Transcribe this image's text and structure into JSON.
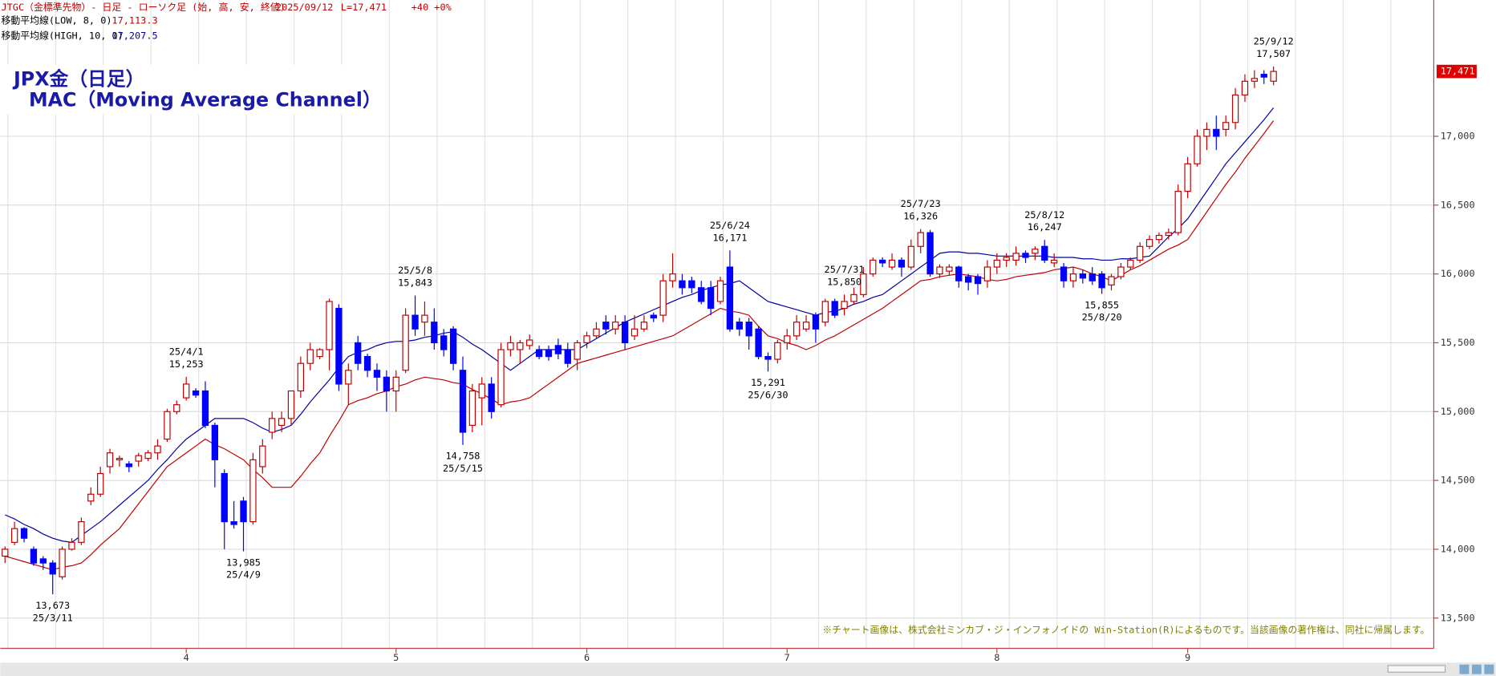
{
  "header": {
    "title": "JTGC（金標準先物）- 日足 - ローソク足 (始, 高, 安, 終値)",
    "date": "2025/09/12",
    "last": "L=17,471",
    "change": "+40",
    "change_pct": "+0%"
  },
  "overlay_title": [
    "JPX金（日足）",
    "MAC（Moving Average Channel）"
  ],
  "footnote": "※チャート画像は、株式会社ミンカブ・ジ・インフォノイドの Win-Station(R)によるものです。当該画像の著作権は、同社に帰属します。",
  "chart_data": {
    "type": "candlestick",
    "up_color": "#c00000",
    "down_color": "#0000ff",
    "grid": true,
    "ylim": [
      13280,
      17990
    ],
    "yticks": [
      {
        "value": 13500,
        "label": "13,500"
      },
      {
        "value": 14000,
        "label": "14,000"
      },
      {
        "value": 14500,
        "label": "14,500"
      },
      {
        "value": 15000,
        "label": "15,000"
      },
      {
        "value": 15500,
        "label": "15,500"
      },
      {
        "value": 16000,
        "label": "16,000"
      },
      {
        "value": 16500,
        "label": "16,500"
      },
      {
        "value": 17000,
        "label": "17,000"
      }
    ],
    "last_price": {
      "value": 17471,
      "label": "17,471"
    },
    "categories": [
      null,
      null,
      null,
      null,
      null,
      null,
      null,
      null,
      null,
      null,
      null,
      null,
      null,
      null,
      null,
      null,
      null,
      null,
      null,
      "4",
      null,
      null,
      null,
      null,
      null,
      null,
      null,
      null,
      null,
      null,
      null,
      null,
      null,
      null,
      null,
      null,
      null,
      null,
      null,
      null,
      null,
      "5",
      null,
      null,
      null,
      null,
      null,
      null,
      null,
      null,
      null,
      null,
      null,
      null,
      null,
      null,
      null,
      null,
      null,
      null,
      null,
      "6",
      null,
      null,
      null,
      null,
      null,
      null,
      null,
      null,
      null,
      null,
      null,
      null,
      null,
      null,
      null,
      null,
      null,
      null,
      null,
      null,
      "7",
      null,
      null,
      null,
      null,
      null,
      null,
      null,
      null,
      null,
      null,
      null,
      null,
      null,
      null,
      null,
      null,
      null,
      null,
      null,
      null,
      null,
      "8",
      null,
      null,
      null,
      null,
      null,
      null,
      null,
      null,
      null,
      null,
      null,
      null,
      null,
      null,
      null,
      null,
      null,
      null,
      null,
      "9",
      null,
      null,
      null,
      null,
      null,
      null,
      null,
      null,
      null
    ],
    "open": [
      13950,
      14050,
      14150,
      14000,
      13930,
      13900,
      13800,
      14000,
      14050,
      14350,
      14400,
      14600,
      14650,
      14620,
      14640,
      14660,
      14700,
      14800,
      15000,
      15100,
      15150,
      15150,
      14900,
      14550,
      14200,
      14350,
      14200,
      14600,
      14850,
      14900,
      14950,
      15150,
      15350,
      15400,
      15450,
      15750,
      15200,
      15500,
      15400,
      15300,
      15250,
      15150,
      15300,
      15700,
      15650,
      15650,
      15550,
      15600,
      15300,
      14900,
      15100,
      15200,
      15050,
      15450,
      15450,
      15480,
      15450,
      15450,
      15480,
      15450,
      15380,
      15500,
      15550,
      15650,
      15600,
      15650,
      15550,
      15600,
      15700,
      15700,
      15950,
      15950,
      15950,
      15900,
      15900,
      15800,
      16050,
      15650,
      15650,
      15600,
      15400,
      15380,
      15500,
      15550,
      15600,
      15700,
      15650,
      15800,
      15750,
      15800,
      15850,
      16000,
      16100,
      16050,
      16100,
      16050,
      16200,
      16300,
      16000,
      16020,
      16050,
      15980,
      15980,
      15950,
      16050,
      16100,
      16100,
      16150,
      16150,
      16200,
      16080,
      16050,
      15950,
      16000,
      16000,
      16000,
      15920,
      15980,
      16050,
      16100,
      16200,
      16250,
      16280,
      16300,
      16600,
      16800,
      17000,
      17050,
      17050,
      17100,
      17300,
      17400,
      17450,
      17400
    ],
    "high": [
      14020,
      14200,
      14160,
      14020,
      13950,
      13920,
      14020,
      14080,
      14230,
      14450,
      14600,
      14730,
      14680,
      14640,
      14700,
      14720,
      14800,
      15020,
      15080,
      15253,
      15170,
      15220,
      14920,
      14580,
      14350,
      14380,
      14700,
      14800,
      15000,
      15000,
      15150,
      15400,
      15500,
      15460,
      15820,
      15780,
      15350,
      15550,
      15420,
      15350,
      15300,
      15300,
      15750,
      15843,
      15800,
      15750,
      15600,
      15620,
      15400,
      15200,
      15250,
      15250,
      15500,
      15550,
      15520,
      15560,
      15480,
      15480,
      15530,
      15500,
      15520,
      15580,
      15650,
      15700,
      15700,
      15700,
      15700,
      15700,
      15720,
      16000,
      16150,
      16000,
      15980,
      15950,
      15950,
      15980,
      16171,
      15680,
      15680,
      15620,
      15430,
      15520,
      15600,
      15700,
      15700,
      15720,
      15820,
      15820,
      15850,
      15900,
      16050,
      16120,
      16120,
      16150,
      16120,
      16250,
      16326,
      16320,
      16070,
      16070,
      16060,
      16000,
      16000,
      16100,
      16150,
      16150,
      16200,
      16170,
      16200,
      16247,
      16150,
      16080,
      16050,
      16030,
      16050,
      16020,
      16000,
      16080,
      16120,
      16230,
      16280,
      16300,
      16330,
      16650,
      16850,
      17050,
      17100,
      17150,
      17150,
      17350,
      17450,
      17480,
      17480,
      17507
    ],
    "low": [
      13900,
      14030,
      14050,
      13880,
      13850,
      13673,
      13780,
      13990,
      14030,
      14320,
      14380,
      14550,
      14600,
      14560,
      14600,
      14640,
      14650,
      14780,
      14980,
      15080,
      15100,
      14880,
      14450,
      14000,
      14150,
      13985,
      14180,
      14550,
      14800,
      14850,
      14900,
      15100,
      15300,
      15380,
      15300,
      15150,
      15050,
      15300,
      15250,
      15150,
      15000,
      15000,
      15280,
      15550,
      15550,
      15450,
      15400,
      15300,
      14758,
      14850,
      14900,
      14950,
      15030,
      15400,
      15350,
      15450,
      15380,
      15370,
      15380,
      15320,
      15300,
      15460,
      15530,
      15560,
      15560,
      15450,
      15520,
      15580,
      15650,
      15650,
      15900,
      15850,
      15860,
      15780,
      15700,
      15780,
      15580,
      15550,
      15450,
      15380,
      15291,
      15350,
      15450,
      15520,
      15580,
      15500,
      15620,
      15680,
      15700,
      15780,
      15830,
      15980,
      16050,
      16030,
      15980,
      16030,
      16150,
      15980,
      15970,
      15990,
      15900,
      15880,
      15850,
      15900,
      16000,
      16050,
      16060,
      16080,
      16100,
      16080,
      16050,
      15900,
      15900,
      15930,
      15920,
      15855,
      15880,
      15960,
      16030,
      16080,
      16180,
      16220,
      16250,
      16280,
      16550,
      16780,
      16900,
      16900,
      17000,
      17050,
      17250,
      17350,
      17380,
      17370
    ],
    "close": [
      14000,
      14150,
      14080,
      13900,
      13900,
      13820,
      14000,
      14050,
      14200,
      14400,
      14550,
      14700,
      14660,
      14600,
      14680,
      14700,
      14750,
      15000,
      15050,
      15200,
      15120,
      14900,
      14650,
      14200,
      14180,
      14200,
      14650,
      14750,
      14950,
      14950,
      15150,
      15350,
      15450,
      15450,
      15800,
      15200,
      15300,
      15350,
      15300,
      15250,
      15150,
      15250,
      15700,
      15600,
      15700,
      15500,
      15450,
      15350,
      14850,
      15150,
      15200,
      15000,
      15450,
      15500,
      15500,
      15520,
      15400,
      15400,
      15420,
      15350,
      15500,
      15550,
      15600,
      15600,
      15650,
      15500,
      15600,
      15650,
      15680,
      15950,
      16000,
      15900,
      15900,
      15800,
      15750,
      15950,
      15600,
      15600,
      15550,
      15400,
      15380,
      15500,
      15550,
      15650,
      15650,
      15600,
      15800,
      15700,
      15800,
      15850,
      16000,
      16100,
      16080,
      16100,
      16050,
      16200,
      16300,
      16000,
      16050,
      16050,
      15950,
      15940,
      15930,
      16050,
      16100,
      16120,
      16150,
      16120,
      16180,
      16100,
      16100,
      15950,
      16000,
      15970,
      15950,
      15900,
      15980,
      16050,
      16100,
      16200,
      16250,
      16280,
      16300,
      16600,
      16800,
      17000,
      17050,
      17000,
      17100,
      17300,
      17400,
      17420,
      17430,
      17471
    ],
    "series": [
      {
        "name": "移動平均線(LOW, 8, 0)",
        "color": "#c00000",
        "value_label": "17,113.3",
        "values": [
          13950,
          13930,
          13910,
          13890,
          13870,
          13850,
          13870,
          13880,
          13900,
          13960,
          14030,
          14090,
          14150,
          14240,
          14330,
          14420,
          14510,
          14600,
          14650,
          14700,
          14750,
          14800,
          14760,
          14730,
          14690,
          14650,
          14580,
          14520,
          14450,
          14450,
          14450,
          14530,
          14620,
          14700,
          14820,
          14930,
          15050,
          15080,
          15100,
          15130,
          15150,
          15180,
          15200,
          15230,
          15250,
          15240,
          15230,
          15210,
          15200,
          15160,
          15130,
          15090,
          15050,
          15070,
          15080,
          15100,
          15150,
          15200,
          15250,
          15300,
          15350,
          15370,
          15390,
          15410,
          15430,
          15450,
          15470,
          15490,
          15510,
          15530,
          15550,
          15590,
          15630,
          15670,
          15710,
          15750,
          15730,
          15720,
          15700,
          15620,
          15550,
          15530,
          15500,
          15480,
          15450,
          15480,
          15520,
          15550,
          15590,
          15630,
          15670,
          15710,
          15750,
          15800,
          15850,
          15900,
          15950,
          15960,
          15980,
          15990,
          16000,
          15990,
          15980,
          15960,
          15950,
          15960,
          15980,
          15990,
          16000,
          16010,
          16030,
          16040,
          16050,
          16030,
          16000,
          15980,
          15950,
          15990,
          16030,
          16060,
          16100,
          16140,
          16180,
          16210,
          16250,
          16350,
          16450,
          16550,
          16650,
          16740,
          16840,
          16930,
          17020,
          17113.3
        ]
      },
      {
        "name": "移動平均線(HIGH, 10, 0)",
        "color": "#0000a0",
        "value_label": "17,207.5",
        "values": [
          14250,
          14220,
          14180,
          14150,
          14110,
          14080,
          14060,
          14050,
          14100,
          14150,
          14200,
          14260,
          14320,
          14380,
          14440,
          14500,
          14580,
          14650,
          14730,
          14800,
          14850,
          14900,
          14950,
          14950,
          14950,
          14950,
          14920,
          14880,
          14850,
          14870,
          14900,
          14980,
          15070,
          15150,
          15230,
          15320,
          15400,
          15430,
          15450,
          15480,
          15500,
          15510,
          15510,
          15520,
          15540,
          15550,
          15570,
          15580,
          15540,
          15490,
          15450,
          15400,
          15350,
          15300,
          15350,
          15400,
          15450,
          15450,
          15450,
          15450,
          15450,
          15490,
          15530,
          15570,
          15610,
          15650,
          15680,
          15710,
          15740,
          15770,
          15800,
          15830,
          15850,
          15880,
          15900,
          15920,
          15930,
          15950,
          15900,
          15850,
          15800,
          15780,
          15760,
          15740,
          15720,
          15700,
          15720,
          15730,
          15750,
          15780,
          15800,
          15830,
          15850,
          15900,
          15950,
          16000,
          16050,
          16100,
          16150,
          16160,
          16160,
          16150,
          16150,
          16140,
          16130,
          16130,
          16130,
          16130,
          16130,
          16130,
          16120,
          16120,
          16120,
          16110,
          16110,
          16100,
          16100,
          16110,
          16110,
          16120,
          16130,
          16200,
          16270,
          16330,
          16400,
          16500,
          16600,
          16700,
          16800,
          16880,
          16960,
          17040,
          17120,
          17207.5
        ]
      }
    ],
    "annotations": [
      {
        "date": "25/3/11",
        "value": 13673,
        "label": "13,673"
      },
      {
        "date": "25/4/1",
        "value": 15253,
        "label": "15,253"
      },
      {
        "date": "25/4/9",
        "value": 13985,
        "label": "13,985"
      },
      {
        "date": "25/5/8",
        "value": 15843,
        "label": "15,843"
      },
      {
        "date": "25/5/15",
        "value": 14758,
        "label": "14,758"
      },
      {
        "date": "25/6/24",
        "value": 16171,
        "label": "16,171"
      },
      {
        "date": "25/6/30",
        "value": 15291,
        "label": "15,291"
      },
      {
        "date": "25/7/23",
        "value": 16326,
        "label": "16,326"
      },
      {
        "date": "25/7/31",
        "value": 15850,
        "label": "15,850"
      },
      {
        "date": "25/8/12",
        "value": 16247,
        "label": "16,247"
      },
      {
        "date": "25/8/20",
        "value": 15855,
        "label": "15,855"
      },
      {
        "date": "25/9/12",
        "value": 17507,
        "label": "17,507"
      }
    ]
  }
}
